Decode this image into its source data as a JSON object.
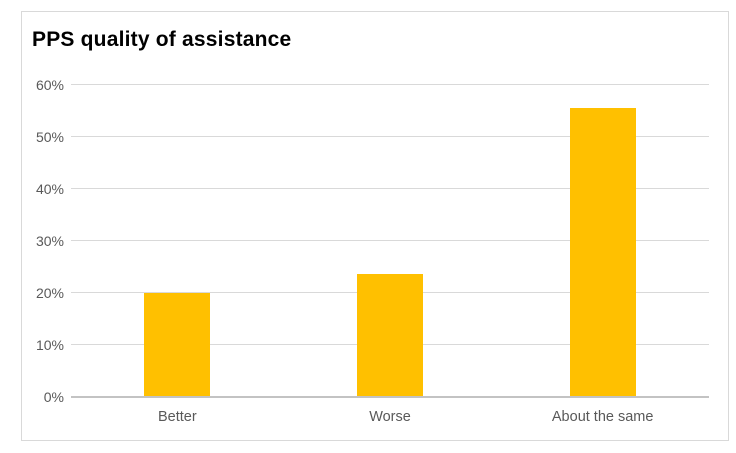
{
  "chart_data": {
    "type": "bar",
    "title": "PPS quality of assistance",
    "categories": [
      "Better",
      "Worse",
      "About the same"
    ],
    "values": [
      20,
      23.7,
      55.6
    ],
    "value_unit": "%",
    "xlabel": "",
    "ylabel": "",
    "ylim": [
      0,
      60
    ],
    "yticks": [
      0,
      10,
      20,
      30,
      40,
      50,
      60
    ],
    "ytick_suffix": "%",
    "grid": "horizontal",
    "legend": "none",
    "colors": {
      "bar": "#FFC000",
      "gridline": "#D9D9D9",
      "axis_line": "#C3C3C3",
      "tick_label": "#595959",
      "category_label": "#595959",
      "title": "#000000",
      "frame_border": "#D9D9D9",
      "background": "#FFFFFF"
    }
  }
}
